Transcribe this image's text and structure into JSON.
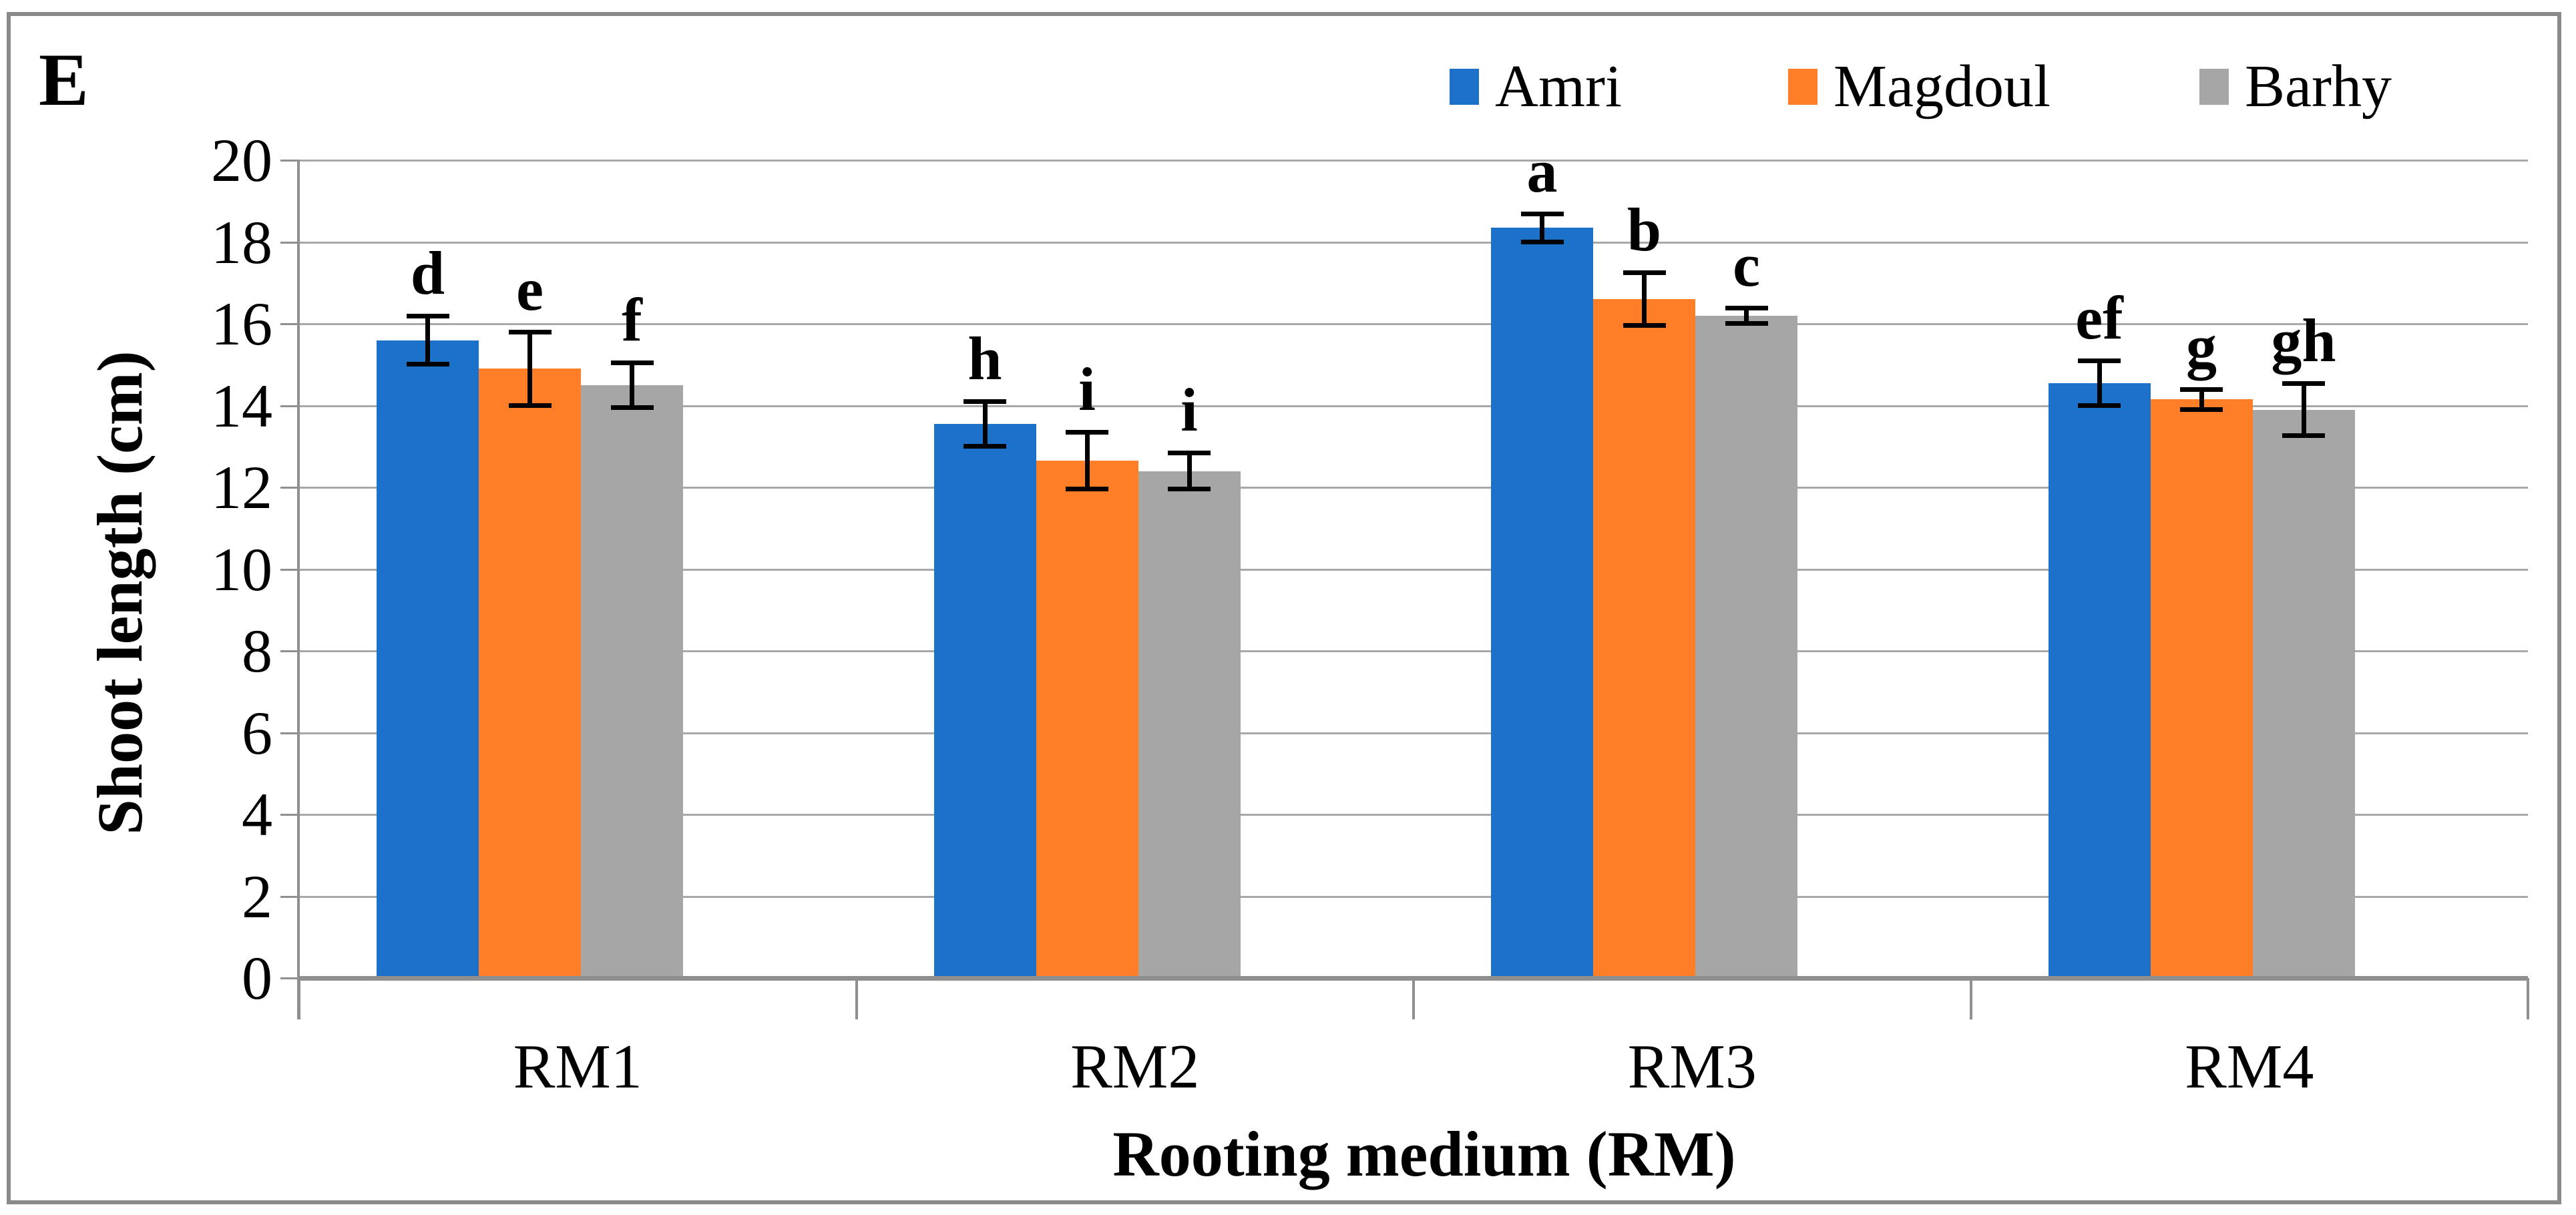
{
  "chart_data": {
    "type": "bar",
    "panel_label": "E",
    "title": "",
    "xlabel": "Rooting medium (RM)",
    "ylabel": "Shoot length (cm)",
    "ylim": [
      0,
      20
    ],
    "yticks": [
      0,
      2,
      4,
      6,
      8,
      10,
      12,
      14,
      16,
      18,
      20
    ],
    "categories": [
      "RM1",
      "RM2",
      "RM3",
      "RM4"
    ],
    "series": [
      {
        "name": "Amri",
        "color": "#1b72c8",
        "values": [
          15.6,
          13.55,
          18.35,
          14.55
        ],
        "errors": [
          0.6,
          0.55,
          0.35,
          0.55
        ],
        "letters": [
          "d",
          "h",
          "a",
          "ef"
        ]
      },
      {
        "name": "Magdoul",
        "color": "#ff7e27",
        "values": [
          14.9,
          12.65,
          16.6,
          14.15
        ],
        "errors": [
          0.9,
          0.7,
          0.65,
          0.25
        ],
        "letters": [
          "e",
          "i",
          "b",
          "g"
        ]
      },
      {
        "name": "Barhy",
        "color": "#a6a6a6",
        "values": [
          14.5,
          12.4,
          16.2,
          13.9
        ],
        "errors": [
          0.55,
          0.45,
          0.2,
          0.65
        ],
        "letters": [
          "f",
          "i",
          "c",
          "gh"
        ]
      }
    ],
    "legend_position": "top-right",
    "grid": true,
    "gridline_color": "#a8a8a8",
    "axis_color": "#8f8f8f",
    "error_bar_color": "#000000",
    "background_color": "#ffffff"
  }
}
